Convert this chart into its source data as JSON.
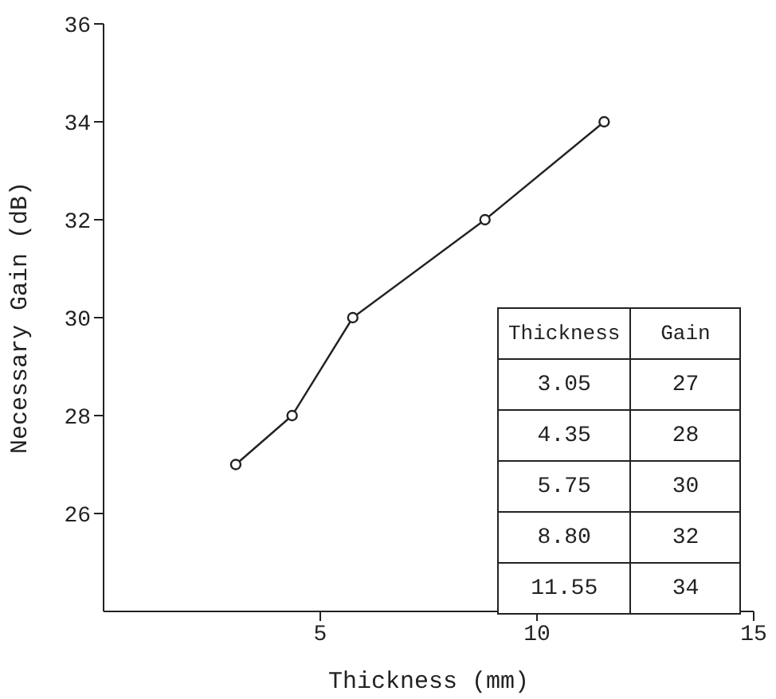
{
  "chart_data": {
    "type": "line",
    "xlabel": "Thickness (mm)",
    "ylabel": "Necessary Gain (dB)",
    "x": [
      3.05,
      4.35,
      5.75,
      8.8,
      11.55
    ],
    "series": [
      {
        "color": "#222222",
        "values": [
          27,
          28,
          30,
          32,
          34
        ]
      }
    ],
    "xlim": [
      0,
      15
    ],
    "xticks": [
      5,
      10,
      15
    ],
    "ylim": [
      24,
      36
    ],
    "yticks": [
      26,
      28,
      30,
      32,
      34,
      36
    ],
    "marker": "circle",
    "line_style": "solid",
    "annotations": [
      "Thickness",
      "Gain",
      "3.05",
      "27",
      "4.35",
      "28",
      "5.75",
      "30",
      "8.80",
      "32",
      "11.55",
      "34"
    ]
  }
}
